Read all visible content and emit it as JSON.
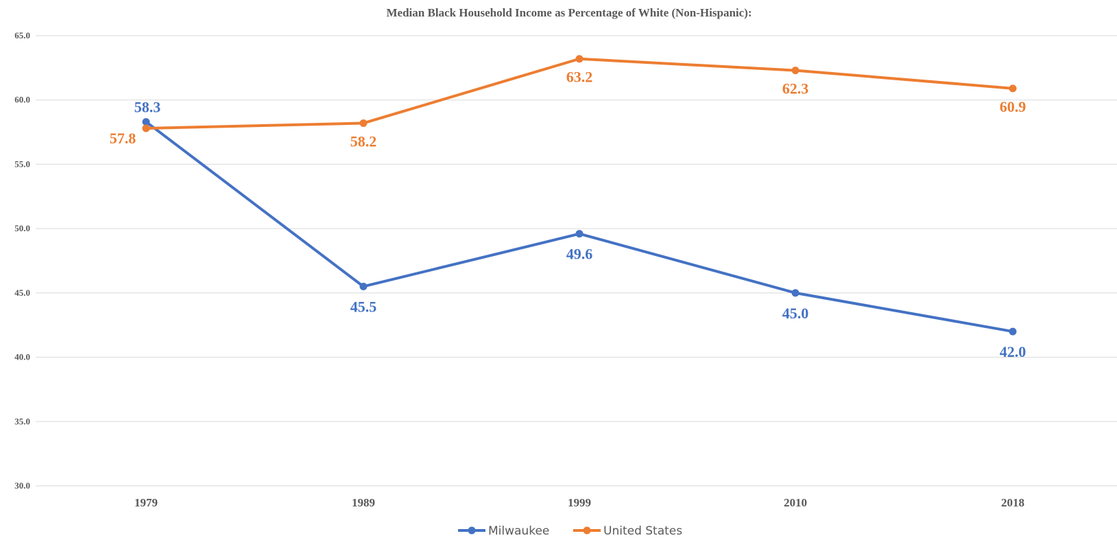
{
  "chart_data": {
    "type": "line",
    "title": "Median Black Household Income as Percentage of White (Non-Hispanic):",
    "categories": [
      "1979",
      "1989",
      "1999",
      "2010",
      "2018"
    ],
    "series": [
      {
        "name": "Milwaukee",
        "color": "#4472c4",
        "values": [
          58.3,
          45.5,
          49.6,
          45.0,
          42.0
        ],
        "labels": [
          "58.3",
          "45.5",
          "49.6",
          "45.0",
          "42.0"
        ]
      },
      {
        "name": "United States",
        "color": "#ed7d31",
        "values": [
          57.8,
          58.2,
          63.2,
          62.3,
          60.9
        ],
        "labels": [
          "57.8",
          "58.2",
          "63.2",
          "62.3",
          "60.9"
        ]
      }
    ],
    "yticks": [
      "30.0",
      "35.0",
      "40.0",
      "45.0",
      "50.0",
      "55.0",
      "60.0",
      "65.0"
    ],
    "ylim": [
      30,
      65
    ],
    "grid": true,
    "legend": "bottom-center",
    "xlabel": "",
    "ylabel": ""
  }
}
